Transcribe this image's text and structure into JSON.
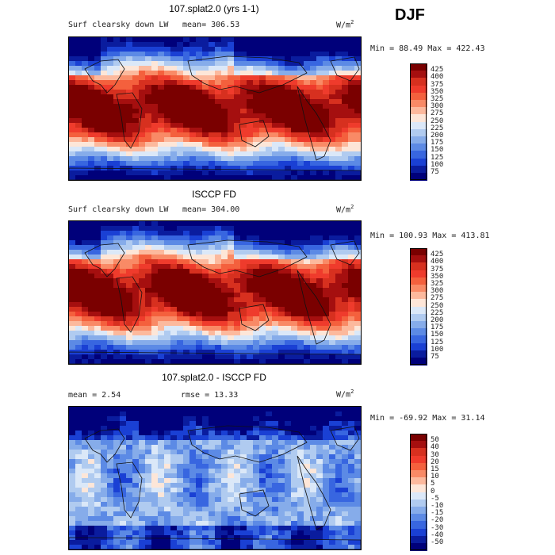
{
  "season": "DJF",
  "panels": [
    {
      "title": "107.splat2.0 (yrs 1-1)",
      "var": "Surf clearsky down LW",
      "mean_text": "mean= 306.53",
      "units": "W/m",
      "units_sup": "2",
      "minmax": "Min =  88.49 Max = 422.43",
      "levels": [
        "425",
        "400",
        "375",
        "350",
        "325",
        "300",
        "275",
        "250",
        "225",
        "200",
        "175",
        "150",
        "125",
        "100",
        "75"
      ],
      "map_kind": "abs"
    },
    {
      "title": "ISCCP FD",
      "var": "Surf clearsky down LW",
      "mean_text": "mean= 304.00",
      "units": "W/m",
      "units_sup": "2",
      "minmax": "Min = 100.93 Max = 413.81",
      "levels": [
        "425",
        "400",
        "375",
        "350",
        "325",
        "300",
        "275",
        "250",
        "225",
        "200",
        "175",
        "150",
        "125",
        "100",
        "75"
      ],
      "map_kind": "abs"
    },
    {
      "title": "107.splat2.0 - ISCCP FD",
      "mean_text": "mean =    2.54",
      "rmse_text": "rmse =   13.33",
      "units": "W/m",
      "units_sup": "2",
      "minmax": "Min = -69.92 Max =  31.14",
      "levels": [
        "50",
        "40",
        "30",
        "20",
        "15",
        "10",
        "5",
        "0",
        "-5",
        "-10",
        "-15",
        "-20",
        "-30",
        "-40",
        "-50"
      ],
      "map_kind": "diff"
    }
  ],
  "colors": {
    "scale": [
      "#7a0000",
      "#a50f0f",
      "#d7301f",
      "#ef3b2c",
      "#f4603d",
      "#f98a66",
      "#fcb99d",
      "#fde6d8",
      "#dbe8f8",
      "#b0cbf0",
      "#86acea",
      "#5c8ae5",
      "#3866e0",
      "#1a40d4",
      "#0a1c9e",
      "#00007a"
    ]
  }
}
